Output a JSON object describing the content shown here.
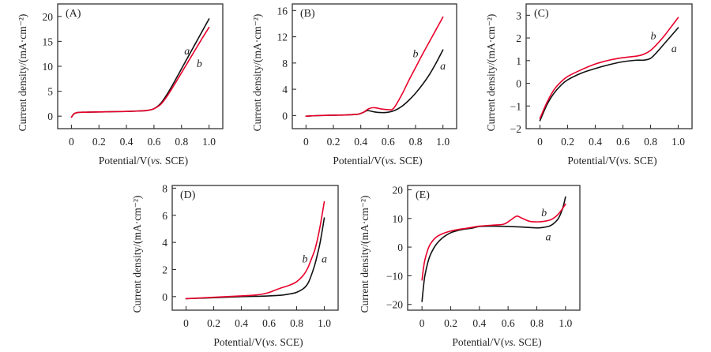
{
  "colors": {
    "a": "#111111",
    "b": "#e8002a"
  },
  "chart_data": [
    {
      "type": "line",
      "panel_label": "(A)",
      "xlabel": "Potential/V(vs. SCE)",
      "ylabel": "Current density/(mA·cm⁻²)",
      "xlim": [
        -0.1,
        1.1
      ],
      "ylim": [
        -2.5,
        22.5
      ],
      "xticks": [
        0,
        0.2,
        0.4,
        0.6,
        0.8,
        1.0
      ],
      "xtick_labels": [
        "0",
        "0.2",
        "0.4",
        "0.6",
        "0.8",
        "1.0"
      ],
      "yticks": [
        0,
        5,
        10,
        15,
        20
      ],
      "ytick_labels": [
        "0",
        "5",
        "10",
        "15",
        "20"
      ],
      "series": [
        {
          "name": "a",
          "label": "a",
          "label_pos": [
            0.84,
            13.2
          ],
          "x": [
            0,
            0.02,
            0.05,
            0.1,
            0.2,
            0.3,
            0.4,
            0.5,
            0.55,
            0.6,
            0.65,
            0.7,
            0.75,
            0.8,
            0.85,
            0.9,
            0.95,
            1.0
          ],
          "y": [
            -0.2,
            0.5,
            0.75,
            0.8,
            0.85,
            0.9,
            0.95,
            1.05,
            1.15,
            1.5,
            2.6,
            4.6,
            7.0,
            9.5,
            12.0,
            14.5,
            17.0,
            19.5
          ]
        },
        {
          "name": "b",
          "label": "b",
          "label_pos": [
            0.93,
            10.6
          ],
          "x": [
            0,
            0.02,
            0.05,
            0.1,
            0.2,
            0.3,
            0.4,
            0.5,
            0.55,
            0.6,
            0.65,
            0.7,
            0.75,
            0.8,
            0.85,
            0.9,
            0.95,
            1.0
          ],
          "y": [
            -0.2,
            0.5,
            0.75,
            0.8,
            0.85,
            0.9,
            0.95,
            1.05,
            1.15,
            1.5,
            2.4,
            4.2,
            6.4,
            8.7,
            11.0,
            13.3,
            15.6,
            17.8
          ]
        }
      ]
    },
    {
      "type": "line",
      "panel_label": "(B)",
      "xlabel": "Potential/V(vs. SCE)",
      "ylabel": "Current density/(mA·cm⁻²)",
      "xlim": [
        -0.1,
        1.1
      ],
      "ylim": [
        -2,
        17
      ],
      "xticks": [
        0,
        0.2,
        0.4,
        0.6,
        0.8,
        1.0
      ],
      "xtick_labels": [
        "0",
        "0.2",
        "0.4",
        "0.6",
        "0.8",
        "1.0"
      ],
      "yticks": [
        0,
        4,
        8,
        12,
        16
      ],
      "ytick_labels": [
        "0",
        "4",
        "8",
        "12",
        "16"
      ],
      "series": [
        {
          "name": "a",
          "label": "a",
          "label_pos": [
            1.0,
            7.6
          ],
          "x": [
            0,
            0.1,
            0.2,
            0.3,
            0.38,
            0.42,
            0.45,
            0.5,
            0.55,
            0.6,
            0.65,
            0.7,
            0.75,
            0.8,
            0.85,
            0.9,
            0.95,
            1.0
          ],
          "y": [
            -0.1,
            0.0,
            0.05,
            0.1,
            0.2,
            0.5,
            0.75,
            0.55,
            0.45,
            0.5,
            0.8,
            1.4,
            2.3,
            3.4,
            4.7,
            6.2,
            8.0,
            10.0
          ]
        },
        {
          "name": "b",
          "label": "b",
          "label_pos": [
            0.8,
            9.5
          ],
          "x": [
            0,
            0.1,
            0.2,
            0.3,
            0.38,
            0.42,
            0.46,
            0.5,
            0.55,
            0.6,
            0.64,
            0.7,
            0.75,
            0.8,
            0.85,
            0.9,
            0.95,
            1.0
          ],
          "y": [
            -0.1,
            0.0,
            0.05,
            0.1,
            0.2,
            0.5,
            1.05,
            1.2,
            1.0,
            0.9,
            1.1,
            3.2,
            5.3,
            7.3,
            9.3,
            11.2,
            13.1,
            15.0
          ]
        }
      ]
    },
    {
      "type": "line",
      "panel_label": "(C)",
      "xlabel": "Potential/V(vs. SCE)",
      "ylabel": "Current density/(mA·cm⁻²)",
      "xlim": [
        -0.1,
        1.1
      ],
      "ylim": [
        -2,
        3.5
      ],
      "xticks": [
        0,
        0.2,
        0.4,
        0.6,
        0.8,
        1.0
      ],
      "xtick_labels": [
        "0",
        "0.2",
        "0.4",
        "0.6",
        "0.8",
        "1.0"
      ],
      "yticks": [
        -2,
        -1,
        0,
        1,
        2,
        3
      ],
      "ytick_labels": [
        "−2",
        "−1",
        "0",
        "1",
        "2",
        "3"
      ],
      "series": [
        {
          "name": "a",
          "label": "a",
          "label_pos": [
            0.97,
            1.55
          ],
          "x": [
            0,
            0.05,
            0.1,
            0.15,
            0.2,
            0.3,
            0.4,
            0.5,
            0.6,
            0.7,
            0.75,
            0.8,
            0.85,
            0.9,
            0.95,
            1.0
          ],
          "y": [
            -1.65,
            -0.95,
            -0.45,
            -0.1,
            0.15,
            0.45,
            0.65,
            0.82,
            0.95,
            1.02,
            1.02,
            1.1,
            1.4,
            1.75,
            2.1,
            2.45
          ]
        },
        {
          "name": "b",
          "label": "b",
          "label_pos": [
            0.82,
            2.1
          ],
          "x": [
            0,
            0.05,
            0.1,
            0.15,
            0.2,
            0.3,
            0.4,
            0.5,
            0.6,
            0.7,
            0.75,
            0.8,
            0.85,
            0.9,
            0.95,
            1.0
          ],
          "y": [
            -1.55,
            -0.85,
            -0.3,
            0.05,
            0.3,
            0.6,
            0.85,
            1.02,
            1.13,
            1.2,
            1.28,
            1.45,
            1.75,
            2.1,
            2.5,
            2.9
          ]
        }
      ]
    },
    {
      "type": "line",
      "panel_label": "(D)",
      "xlabel": "Potential/V(vs. SCE)",
      "ylabel": "Current density/(mA·cm⁻²)",
      "xlim": [
        -0.1,
        1.1
      ],
      "ylim": [
        -1,
        8.2
      ],
      "xticks": [
        0,
        0.2,
        0.4,
        0.6,
        0.8,
        1.0
      ],
      "xtick_labels": [
        "0",
        "0.2",
        "0.4",
        "0.6",
        "0.8",
        "1.0"
      ],
      "yticks": [
        0,
        2,
        4,
        6,
        8
      ],
      "ytick_labels": [
        "0",
        "2",
        "4",
        "6",
        "8"
      ],
      "series": [
        {
          "name": "a",
          "label": "a",
          "label_pos": [
            1.0,
            2.8
          ],
          "x": [
            0,
            0.2,
            0.4,
            0.5,
            0.6,
            0.7,
            0.75,
            0.8,
            0.85,
            0.88,
            0.9,
            0.93,
            0.95,
            0.97,
            1.0
          ],
          "y": [
            -0.15,
            -0.08,
            0.0,
            0.02,
            0.05,
            0.12,
            0.2,
            0.32,
            0.6,
            0.95,
            1.4,
            2.3,
            3.1,
            4.0,
            5.8
          ]
        },
        {
          "name": "b",
          "label": "b",
          "label_pos": [
            0.86,
            2.8
          ],
          "x": [
            0,
            0.2,
            0.4,
            0.5,
            0.55,
            0.6,
            0.65,
            0.7,
            0.75,
            0.8,
            0.85,
            0.88,
            0.9,
            0.93,
            0.95,
            0.97,
            1.0
          ],
          "y": [
            -0.15,
            -0.05,
            0.05,
            0.12,
            0.18,
            0.3,
            0.5,
            0.68,
            0.85,
            1.1,
            1.6,
            2.1,
            2.6,
            3.4,
            4.2,
            5.2,
            7.0
          ]
        }
      ]
    },
    {
      "type": "line",
      "panel_label": "(E)",
      "xlabel": "Potential/V(vs. SCE)",
      "ylabel": "Current density/(mA·cm⁻²)",
      "xlim": [
        -0.1,
        1.1
      ],
      "ylim": [
        -22,
        21.5
      ],
      "xticks": [
        0,
        0.2,
        0.4,
        0.6,
        0.8,
        1.0
      ],
      "xtick_labels": [
        "0",
        "0.2",
        "0.4",
        "0.6",
        "0.8",
        "1.0"
      ],
      "yticks": [
        -20,
        -10,
        0,
        10,
        20
      ],
      "ytick_labels": [
        "−20",
        "−10",
        "0",
        "10",
        "20"
      ],
      "series": [
        {
          "name": "a",
          "label": "a",
          "label_pos": [
            0.88,
            3.8
          ],
          "x": [
            0,
            0.01,
            0.02,
            0.04,
            0.06,
            0.1,
            0.15,
            0.2,
            0.25,
            0.3,
            0.35,
            0.4,
            0.5,
            0.6,
            0.7,
            0.8,
            0.85,
            0.9,
            0.95,
            0.98,
            1.0
          ],
          "y": [
            -19,
            -14,
            -10,
            -5.5,
            -2.5,
            1.0,
            3.5,
            5.0,
            5.8,
            6.3,
            6.6,
            7.2,
            7.3,
            7.2,
            7.0,
            6.7,
            6.9,
            7.6,
            10.0,
            13.5,
            17.5
          ]
        },
        {
          "name": "b",
          "label": "b",
          "label_pos": [
            0.85,
            12.2
          ],
          "x": [
            0,
            0.01,
            0.02,
            0.04,
            0.06,
            0.1,
            0.15,
            0.2,
            0.25,
            0.3,
            0.35,
            0.4,
            0.5,
            0.57,
            0.62,
            0.66,
            0.7,
            0.75,
            0.8,
            0.85,
            0.9,
            0.95,
            1.0
          ],
          "y": [
            -11.5,
            -7.5,
            -4.5,
            -1.0,
            1.2,
            3.5,
            4.8,
            5.6,
            6.1,
            6.5,
            6.9,
            7.3,
            7.7,
            8.0,
            9.5,
            10.8,
            10.0,
            9.0,
            8.8,
            9.0,
            9.6,
            11.5,
            15.0
          ]
        }
      ]
    }
  ]
}
